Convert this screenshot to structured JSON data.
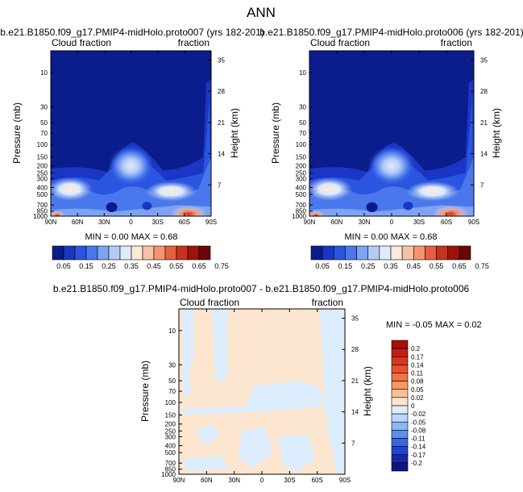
{
  "page": {
    "title": "ANN"
  },
  "chart_data": [
    {
      "type": "contour",
      "title": "b.e21.B1850.f09_g17.PMIP4-midHolo.proto007 (yrs 182-201)",
      "left_label": "Cloud fraction",
      "right_label": "fraction",
      "xlabel": "",
      "ylabel": "Pressure (mb)",
      "ylabel_right": "Height (km)",
      "x_ticks": [
        "90N",
        "60N",
        "30N",
        "0",
        "30S",
        "60S",
        "90S"
      ],
      "y_ticks": [
        "10",
        "30",
        "50",
        "70",
        "100",
        "150",
        "200",
        "250",
        "300",
        "400",
        "500",
        "700",
        "850",
        "1000"
      ],
      "height_ticks": [
        "35",
        "28",
        "21",
        "14",
        "7"
      ],
      "stats": {
        "min": "0.00",
        "max": "0.68",
        "text": "MIN =  0.00  MAX =  0.68"
      },
      "colorbar": {
        "orientation": "horizontal",
        "labels": [
          "0.05",
          "0.15",
          "0.25",
          "0.35",
          "0.45",
          "0.55",
          "0.65",
          "0.75"
        ],
        "colors": [
          "#0b1c8c",
          "#1b36c4",
          "#2a55e0",
          "#4a78ec",
          "#7ea3f3",
          "#b3ccf7",
          "#deebfb",
          "#fde8da",
          "#f8c2a6",
          "#f39571",
          "#e5603f",
          "#c9311c",
          "#9e130c",
          "#6a0606"
        ]
      }
    },
    {
      "type": "contour",
      "title": "b.e21.B1850.f09_g17.PMIP4-midHolo.proto006 (yrs 182-201)",
      "left_label": "Cloud fraction",
      "right_label": "fraction",
      "xlabel": "",
      "ylabel": "Pressure (mb)",
      "ylabel_right": "Height (km)",
      "x_ticks": [
        "90N",
        "60N",
        "30N",
        "0",
        "30S",
        "60S",
        "90S"
      ],
      "y_ticks": [
        "10",
        "30",
        "50",
        "70",
        "100",
        "150",
        "200",
        "250",
        "300",
        "400",
        "500",
        "700",
        "850",
        "1000"
      ],
      "height_ticks": [
        "35",
        "28",
        "21",
        "14",
        "7"
      ],
      "stats": {
        "min": "0.00",
        "max": "0.68",
        "text": "MIN =  0.00  MAX =  0.68"
      },
      "colorbar": {
        "orientation": "horizontal",
        "labels": [
          "0.05",
          "0.15",
          "0.25",
          "0.35",
          "0.45",
          "0.55",
          "0.65",
          "0.75"
        ],
        "colors": [
          "#0b1c8c",
          "#1b36c4",
          "#2a55e0",
          "#4a78ec",
          "#7ea3f3",
          "#b3ccf7",
          "#deebfb",
          "#fde8da",
          "#f8c2a6",
          "#f39571",
          "#e5603f",
          "#c9311c",
          "#9e130c",
          "#6a0606"
        ]
      }
    },
    {
      "type": "contour",
      "title": "b.e21.B1850.f09_g17.PMIP4-midHolo.proto007 - b.e21.B1850.f09_g17.PMIP4-midHolo.proto006",
      "left_label": "Cloud fraction",
      "right_label": "fraction",
      "xlabel": "",
      "ylabel": "Pressure (mb)",
      "ylabel_right": "Height (km)",
      "x_ticks": [
        "90N",
        "60N",
        "30N",
        "0",
        "30S",
        "60S",
        "90S"
      ],
      "y_ticks": [
        "10",
        "30",
        "50",
        "70",
        "100",
        "150",
        "200",
        "250",
        "300",
        "400",
        "500",
        "700",
        "850",
        "1000"
      ],
      "height_ticks": [
        "35",
        "28",
        "21",
        "14",
        "7"
      ],
      "stats": {
        "min": "-0.05",
        "max": "0.02",
        "text": "MIN = -0.05  MAX =  0.02"
      },
      "colorbar": {
        "orientation": "vertical",
        "labels": [
          "0.2",
          "0.17",
          "0.14",
          "0.11",
          "0.08",
          "0.05",
          "0.02",
          "0",
          "-0.02",
          "-0.05",
          "-0.08",
          "-0.11",
          "-0.14",
          "-0.17",
          "-0.2"
        ],
        "colors": [
          "#a50f07",
          "#c41f10",
          "#d9351c",
          "#e9502d",
          "#f2733f",
          "#f79863",
          "#fbbf96",
          "#fde6cf",
          "#dceefe",
          "#b8d7fa",
          "#8ab6f3",
          "#5d8feb",
          "#3a66df",
          "#2443c9",
          "#1528a8",
          "#0b1680"
        ]
      }
    }
  ]
}
